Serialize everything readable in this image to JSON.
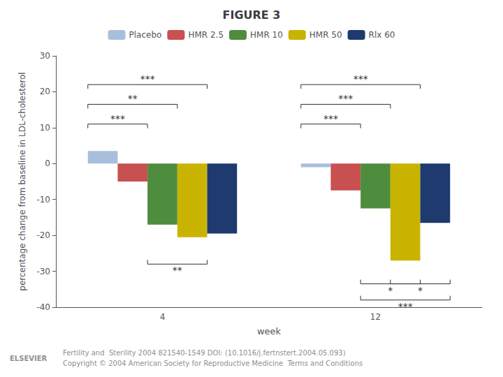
{
  "chart_data": {
    "type": "bar",
    "title": "FIGURE 3",
    "xlabel": "week",
    "ylabel": "percentage change from baseline in LDL-cholesterol",
    "categories": [
      "4",
      "12"
    ],
    "series": [
      {
        "name": "Placebo",
        "color": "#a8bfdc",
        "values": [
          3.5,
          -1.0
        ]
      },
      {
        "name": "HMR 2.5",
        "color": "#c85050",
        "values": [
          -5.0,
          -7.5
        ]
      },
      {
        "name": "HMR 10",
        "color": "#4e8c3e",
        "values": [
          -17.0,
          -12.5
        ]
      },
      {
        "name": "HMR 50",
        "color": "#c8b400",
        "values": [
          -20.5,
          -27.0
        ]
      },
      {
        "name": "Rlx 60",
        "color": "#1e3a6e",
        "values": [
          -19.5,
          -16.5
        ]
      }
    ],
    "ylim": [
      -40,
      30
    ],
    "yticks": [
      -40,
      -30,
      -20,
      -10,
      0,
      10,
      20,
      30
    ],
    "grid": false,
    "legend": "top",
    "annotations": [
      {
        "text": "***",
        "category": "4",
        "from": "Placebo",
        "to": "HMR 50",
        "y": 22,
        "side": "above"
      },
      {
        "text": "**",
        "category": "4",
        "from": "Placebo",
        "to": "HMR 10",
        "y": 16.5,
        "side": "above"
      },
      {
        "text": "***",
        "category": "4",
        "from": "Placebo",
        "to": "HMR 2.5",
        "y": 11,
        "side": "above"
      },
      {
        "text": "**",
        "category": "4",
        "from": "HMR 10",
        "to": "HMR 50",
        "y": -28,
        "side": "below"
      },
      {
        "text": "***",
        "category": "12",
        "from": "Placebo",
        "to": "HMR 50",
        "y": 22,
        "side": "above"
      },
      {
        "text": "***",
        "category": "12",
        "from": "Placebo",
        "to": "HMR 10",
        "y": 16.5,
        "side": "above"
      },
      {
        "text": "***",
        "category": "12",
        "from": "Placebo",
        "to": "HMR 2.5",
        "y": 11,
        "side": "above"
      },
      {
        "text": "*",
        "category": "12",
        "from": "HMR 10",
        "to": "HMR 50",
        "y": -33.5,
        "side": "below"
      },
      {
        "text": "*",
        "category": "12",
        "from": "HMR 50",
        "to": "Rlx 60",
        "y": -33.5,
        "side": "below"
      },
      {
        "text": "***",
        "category": "12",
        "from": "HMR 10",
        "to": "Rlx 60",
        "y": -38,
        "side": "below"
      }
    ],
    "footer": {
      "logo": "ELSEVIER",
      "lines": [
        "Fertility and  Sterility 2004 821540-1549 DOI: (10.1016/j.fertnstert.2004.05.093)",
        "Copyright © 2004 American Society for Reproductive Medicine  Terms and Conditions"
      ]
    }
  }
}
